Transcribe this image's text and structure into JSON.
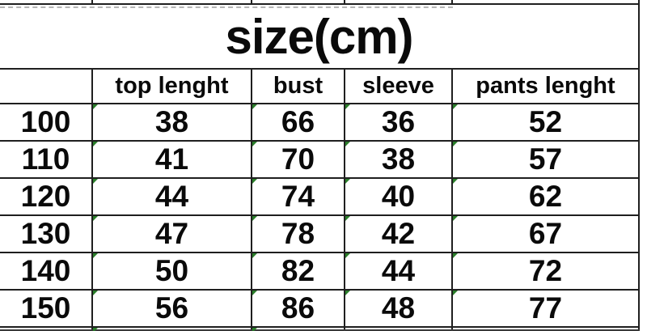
{
  "chart_data": {
    "type": "table",
    "title": "size(cm)",
    "columns": [
      "",
      "top lenght",
      "bust",
      "sleeve",
      "pants lenght"
    ],
    "rows": [
      [
        "100",
        "38",
        "66",
        "36",
        "52"
      ],
      [
        "110",
        "41",
        "70",
        "38",
        "57"
      ],
      [
        "120",
        "44",
        "74",
        "40",
        "62"
      ],
      [
        "130",
        "47",
        "78",
        "42",
        "67"
      ],
      [
        "140",
        "50",
        "82",
        "44",
        "72"
      ],
      [
        "150",
        "56",
        "86",
        "48",
        "77"
      ]
    ],
    "layout": {
      "grid": "on",
      "title_merged_across_all_columns": true,
      "units": "cm"
    }
  },
  "colors": {
    "grid_line": "#1f1f1f",
    "text": "#0a0a0a",
    "stored_as_text_indicator": "#2a7e2a",
    "page_break_dash": "#b6b6b6",
    "background": "#ffffff"
  },
  "icons": {
    "stored_as_text_indicator": "green top-left corner triangle on data cells"
  }
}
